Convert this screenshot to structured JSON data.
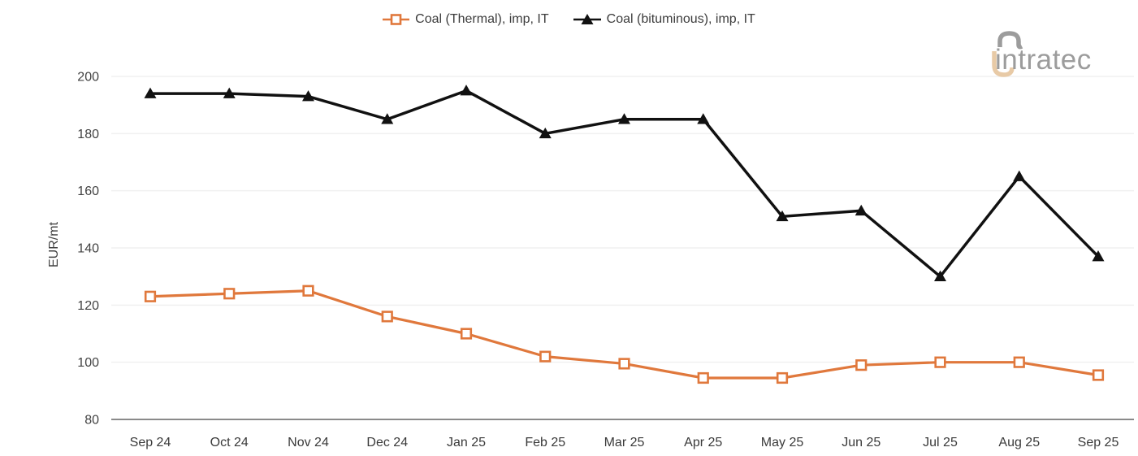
{
  "logo": {
    "text": "intratec"
  },
  "colors": {
    "gridline": "#F0F0F0",
    "axis_line": "#8A8A8A",
    "tick_label": "#424242",
    "x_tick_label": "#3A3A3A",
    "legend_text": "#3C3C3C",
    "logo_gray": "#9C9C9C",
    "logo_tan": "#E8CAA6"
  },
  "chart_data": {
    "type": "line",
    "title": "",
    "xlabel": "",
    "ylabel": "EUR/mt",
    "ylim": [
      80,
      200
    ],
    "yticks": [
      80,
      100,
      120,
      140,
      160,
      180,
      200
    ],
    "grid": true,
    "legend_position": "top-center",
    "categories": [
      "Sep 24",
      "Oct 24",
      "Nov 24",
      "Dec 24",
      "Jan 25",
      "Feb 25",
      "Mar 25",
      "Apr 25",
      "May 25",
      "Jun 25",
      "Jul 25",
      "Aug 25",
      "Sep 25"
    ],
    "series": [
      {
        "name": "Coal (Thermal), imp, IT",
        "color": "#E0783C",
        "marker": "hollow-square",
        "line_width": 3.2,
        "values": [
          123,
          124,
          125,
          116,
          110,
          102,
          99.5,
          94.5,
          94.5,
          99,
          100,
          100,
          95.5
        ]
      },
      {
        "name": "Coal (bituminous), imp, IT",
        "color": "#111111",
        "marker": "filled-triangle",
        "line_width": 3.5,
        "values": [
          194,
          194,
          193,
          185,
          195,
          180,
          185,
          185,
          151,
          153,
          130,
          165,
          137
        ]
      }
    ]
  }
}
